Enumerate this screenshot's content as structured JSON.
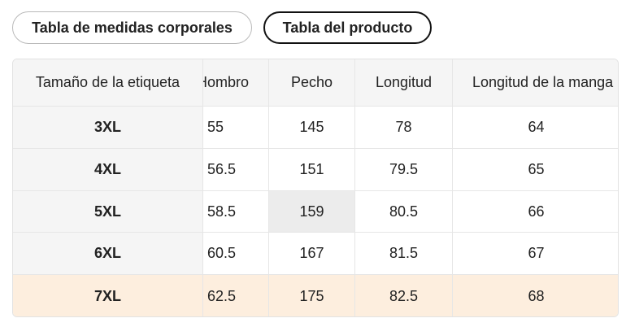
{
  "tabs": {
    "body_chart": "Tabla de medidas corporales",
    "product_chart": "Tabla del producto",
    "active": "product_chart"
  },
  "table": {
    "headers": [
      "Tamaño de la etiqueta",
      "Hombro",
      "Pecho",
      "Longitud",
      "Longitud de la manga"
    ],
    "header_visible": [
      "Tamaño de la etiqueta",
      "lombro",
      "Pecho",
      "Longitud",
      "Longitud de la manga"
    ],
    "rows": [
      [
        "3XL",
        "55",
        "145",
        "78",
        "64"
      ],
      [
        "4XL",
        "56.5",
        "151",
        "79.5",
        "65"
      ],
      [
        "5XL",
        "58.5",
        "159",
        "80.5",
        "66"
      ],
      [
        "6XL",
        "60.5",
        "167",
        "81.5",
        "67"
      ],
      [
        "7XL",
        "62.5",
        "175",
        "82.5",
        "68"
      ]
    ],
    "highlighted_row": "7XL",
    "selected_cell": "159"
  },
  "colors": {
    "highlight_row": "#fdeede",
    "header_bg": "#f5f5f5",
    "selected_cell": "#ececec",
    "active_tab_border": "#111111"
  }
}
